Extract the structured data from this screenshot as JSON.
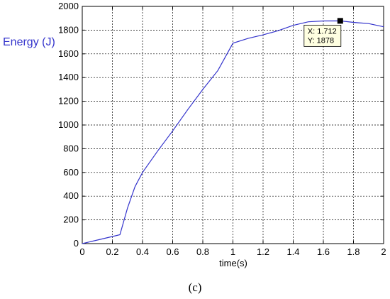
{
  "caption": "(c)",
  "colors": {
    "line": "#3333cc",
    "grid": "#000000",
    "tooltip_bg": "#ffffe1"
  },
  "chart_data": {
    "type": "line",
    "xlabel": "time(s)",
    "ylabel": "Energy (J)",
    "xlim": [
      0,
      2
    ],
    "ylim": [
      0,
      2000
    ],
    "xticks": [
      "0",
      "0.2",
      "0.4",
      "0.6",
      "0.8",
      "1",
      "1.2",
      "1.4",
      "1.6",
      "1.8",
      "2"
    ],
    "yticks": [
      "0",
      "200",
      "400",
      "600",
      "800",
      "1000",
      "1200",
      "1400",
      "1600",
      "1800",
      "2000"
    ],
    "grid": true,
    "series": [
      {
        "x": [
          0,
          0.1,
          0.2,
          0.25,
          0.3,
          0.35,
          0.4,
          0.5,
          0.6,
          0.7,
          0.8,
          0.9,
          1.0,
          1.1,
          1.2,
          1.3,
          1.4,
          1.5,
          1.6,
          1.712,
          1.8,
          1.9,
          2.0
        ],
        "y": [
          0,
          30,
          60,
          75,
          300,
          480,
          600,
          780,
          950,
          1130,
          1300,
          1460,
          1690,
          1730,
          1760,
          1795,
          1840,
          1870,
          1877,
          1878,
          1865,
          1855,
          1828
        ]
      }
    ],
    "datatip": {
      "x_text": "X: 1.712",
      "y_text": "Y: 1878",
      "x": 1.712,
      "y": 1878
    }
  }
}
